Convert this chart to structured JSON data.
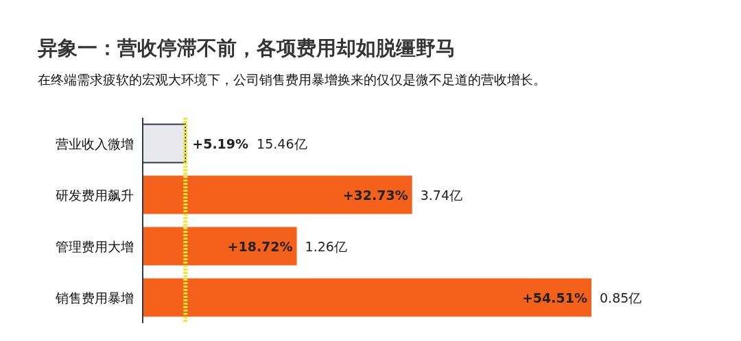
{
  "chart_data": {
    "type": "bar",
    "orientation": "horizontal",
    "title": "异象一：营收停滞不前，各项费用却如脱缰野马",
    "subtitle": "在终端需求疲软的宏观大环境下，公司销售费用暴增换来的仅仅是微不足道的营收增长。",
    "categories": [
      "营业收入微增",
      "研发费用飙升",
      "管理费用大增",
      "销售费用暴增"
    ],
    "values": [
      5.19,
      32.73,
      18.72,
      54.51
    ],
    "colors": [
      "#e8e8ee",
      "#f4611b",
      "#f4611b",
      "#f4611b"
    ],
    "value_labels": [
      "+5.19%",
      "+32.73%",
      "+18.72%",
      "+54.51%"
    ],
    "annotations": [
      "15.46亿",
      "3.74亿",
      "1.26亿",
      "0.85亿"
    ],
    "ref_lines": [
      {
        "axis": "x",
        "value": 5.19,
        "color": "#f5e72a",
        "line_style": "dotted"
      }
    ]
  }
}
